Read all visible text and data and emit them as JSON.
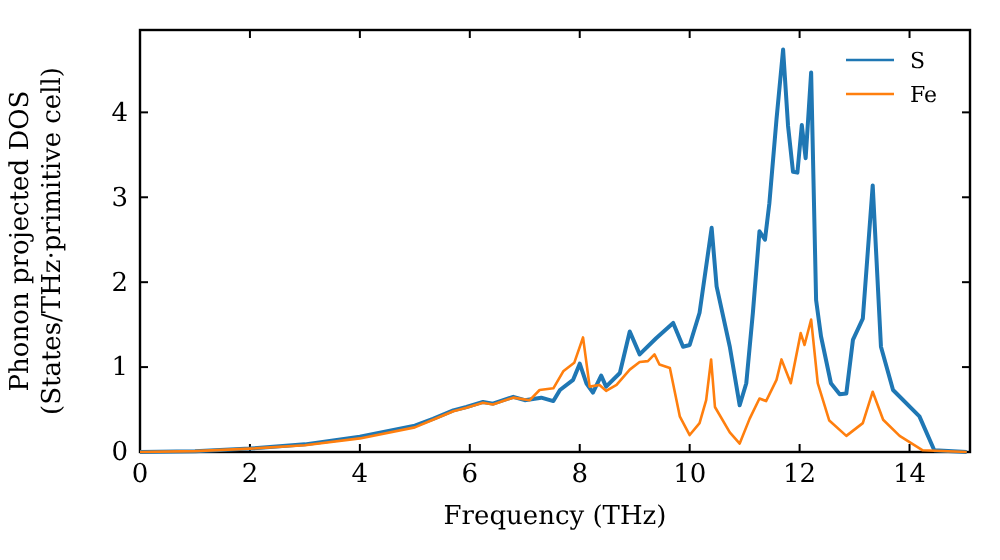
{
  "chart_data": {
    "type": "line",
    "xlabel": "Frequency (THz)",
    "ylabel": "Phonon projected DOS\n(States/THz·primitive cell)",
    "xlim": [
      0,
      15.1
    ],
    "ylim": [
      0,
      4.97
    ],
    "xticks": [
      0,
      2,
      4,
      6,
      8,
      10,
      12,
      14
    ],
    "yticks": [
      0,
      1,
      2,
      3,
      4
    ],
    "grid": false,
    "legend": "top right",
    "series": [
      {
        "name": "S",
        "color": "#1f77b4",
        "x": [
          0,
          1,
          2,
          3,
          4,
          5,
          5.33,
          5.7,
          5.94,
          6.24,
          6.42,
          6.79,
          7.0,
          7.3,
          7.52,
          7.64,
          7.88,
          8.0,
          8.12,
          8.24,
          8.39,
          8.48,
          8.73,
          8.91,
          9.09,
          9.39,
          9.7,
          9.88,
          10.0,
          10.18,
          10.4,
          10.49,
          10.73,
          10.91,
          11.03,
          11.15,
          11.27,
          11.37,
          11.45,
          11.58,
          11.7,
          11.79,
          11.88,
          11.96,
          12.04,
          12.11,
          12.21,
          12.3,
          12.39,
          12.57,
          12.73,
          12.85,
          12.97,
          13.15,
          13.33,
          13.48,
          13.7,
          14.18,
          14.45,
          15.04
        ],
        "values": [
          0,
          0.01,
          0.04,
          0.09,
          0.18,
          0.31,
          0.39,
          0.49,
          0.53,
          0.59,
          0.57,
          0.65,
          0.61,
          0.64,
          0.6,
          0.73,
          0.85,
          1.04,
          0.81,
          0.7,
          0.9,
          0.77,
          0.93,
          1.42,
          1.15,
          1.34,
          1.52,
          1.24,
          1.26,
          1.64,
          2.64,
          1.95,
          1.24,
          0.55,
          0.81,
          1.64,
          2.6,
          2.5,
          2.93,
          3.92,
          4.74,
          3.84,
          3.3,
          3.29,
          3.85,
          3.46,
          4.47,
          1.79,
          1.36,
          0.81,
          0.68,
          0.69,
          1.32,
          1.57,
          3.14,
          1.24,
          0.73,
          0.42,
          0.02,
          0
        ]
      },
      {
        "name": "Fe",
        "color": "#ff7f0e",
        "x": [
          0,
          1,
          2,
          3,
          4,
          5,
          5.33,
          5.7,
          5.94,
          6.24,
          6.42,
          6.79,
          7.09,
          7.27,
          7.52,
          7.7,
          7.9,
          8.06,
          8.18,
          8.36,
          8.48,
          8.67,
          8.91,
          9.09,
          9.24,
          9.36,
          9.45,
          9.64,
          9.82,
          10.0,
          10.18,
          10.3,
          10.39,
          10.46,
          10.73,
          10.91,
          11.09,
          11.27,
          11.39,
          11.58,
          11.67,
          11.84,
          12.02,
          12.09,
          12.21,
          12.33,
          12.54,
          12.85,
          13.15,
          13.33,
          13.52,
          13.82,
          14.24,
          15.04
        ],
        "values": [
          0,
          0.01,
          0.04,
          0.08,
          0.16,
          0.29,
          0.38,
          0.48,
          0.52,
          0.58,
          0.56,
          0.64,
          0.61,
          0.73,
          0.75,
          0.95,
          1.05,
          1.35,
          0.77,
          0.79,
          0.72,
          0.79,
          0.97,
          1.06,
          1.07,
          1.15,
          1.03,
          0.99,
          0.42,
          0.2,
          0.34,
          0.61,
          1.09,
          0.53,
          0.23,
          0.1,
          0.39,
          0.63,
          0.6,
          0.85,
          1.09,
          0.81,
          1.4,
          1.26,
          1.56,
          0.81,
          0.37,
          0.19,
          0.34,
          0.71,
          0.38,
          0.19,
          0.02,
          0
        ]
      }
    ]
  }
}
